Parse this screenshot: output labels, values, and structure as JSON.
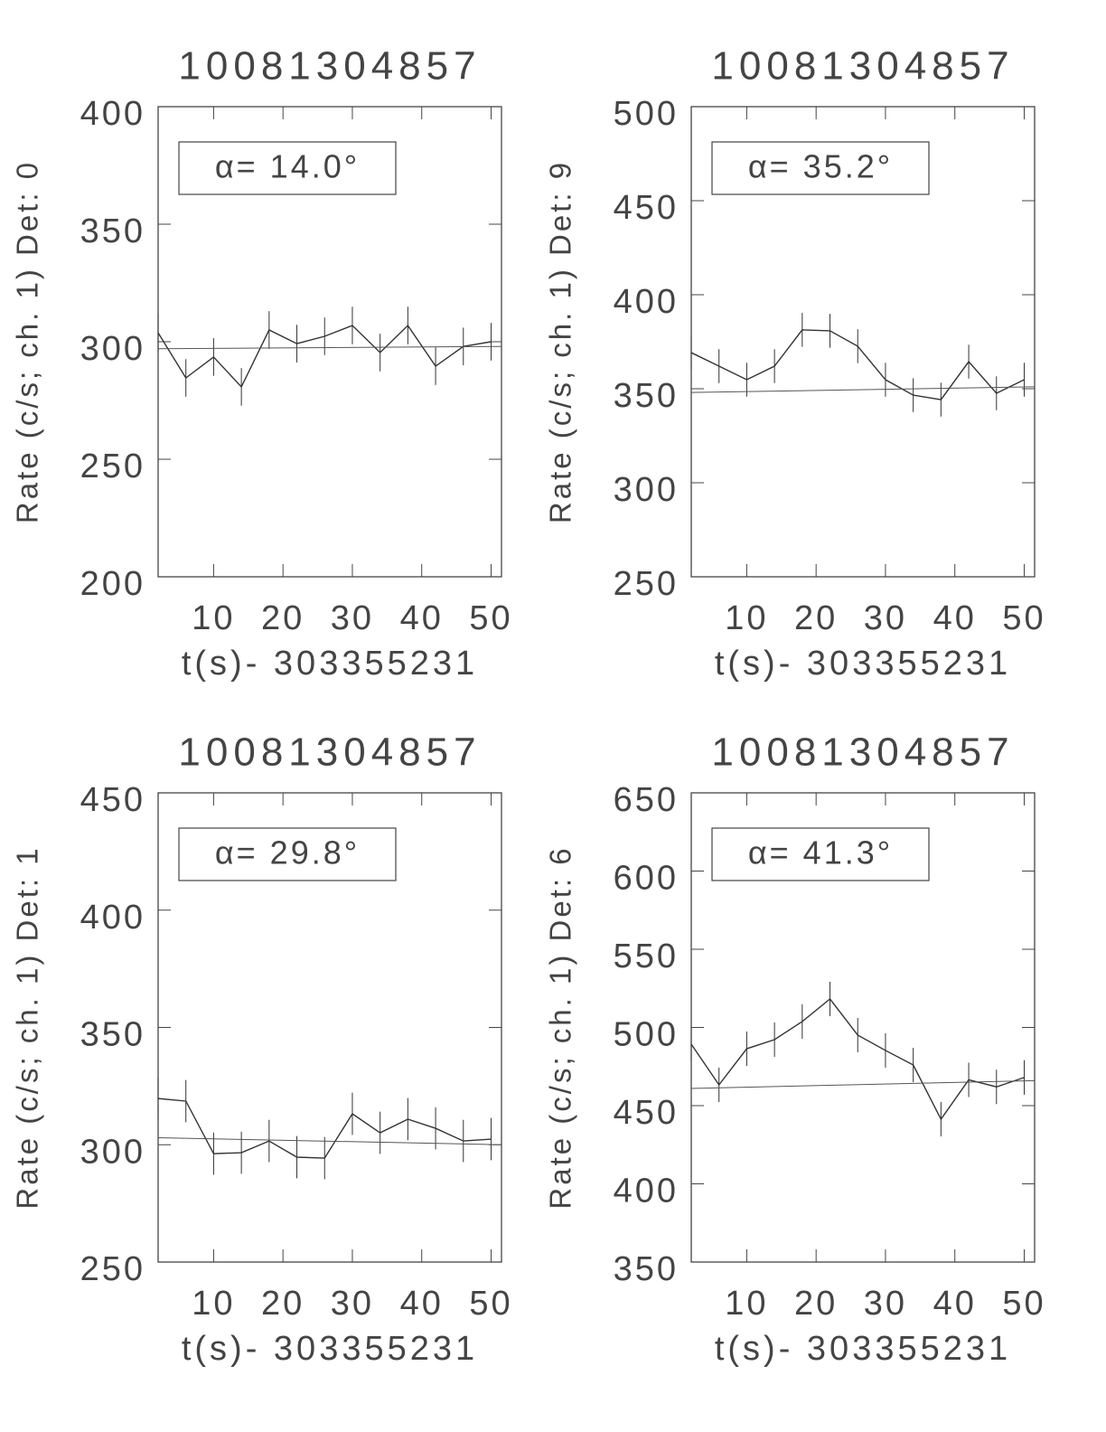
{
  "chart_data": [
    {
      "type": "line",
      "title": "10081304857",
      "xlabel": "t(s)- 303355231",
      "ylabel": "Rate (c/s; ch. 1) Det: 0",
      "annotation": "α= 14.0°",
      "x": [
        2,
        6,
        10,
        14,
        18,
        22,
        26,
        30,
        34,
        38,
        42,
        46,
        50
      ],
      "xlim": [
        2,
        51.5
      ],
      "xticks": [
        10,
        20,
        30,
        40,
        50
      ],
      "ylim": [
        200,
        400
      ],
      "yticks": [
        200,
        250,
        300,
        350,
        400
      ],
      "series": [
        {
          "color": "#333333",
          "values": [
            303.8,
            284.6,
            293.5,
            280.8,
            305,
            299.2,
            302.3,
            306.9,
            295.4,
            306.9,
            289.6,
            298,
            300
          ],
          "errors": [
            8,
            8,
            8,
            8,
            8,
            8,
            8,
            8,
            8,
            8,
            8,
            8,
            8
          ]
        },
        {
          "color": "#555555",
          "x": [
            2,
            51.5
          ],
          "values": [
            297,
            298
          ]
        }
      ]
    },
    {
      "type": "line",
      "title": "10081304857",
      "xlabel": "t(s)- 303355231",
      "ylabel": "Rate (c/s; ch. 1) Det: 9",
      "annotation": "α= 35.2°",
      "x": [
        2,
        6,
        10,
        14,
        18,
        22,
        26,
        30,
        34,
        38,
        42,
        46,
        50
      ],
      "xlim": [
        2,
        51.5
      ],
      "xticks": [
        10,
        20,
        30,
        40,
        50
      ],
      "ylim": [
        250,
        500
      ],
      "yticks": [
        250,
        300,
        350,
        400,
        450,
        500
      ],
      "series": [
        {
          "color": "#333333",
          "values": [
            369.2,
            362,
            354.8,
            362,
            381.3,
            380.8,
            372.6,
            354.8,
            346.6,
            344.2,
            364.4,
            347.6,
            354.8
          ],
          "errors": [
            9,
            9,
            9,
            9,
            9,
            9,
            9,
            9,
            9,
            9,
            9,
            9,
            9
          ]
        },
        {
          "color": "#555555",
          "x": [
            2,
            51.5
          ],
          "values": [
            348,
            351
          ]
        }
      ]
    },
    {
      "type": "line",
      "title": "10081304857",
      "xlabel": "t(s)- 303355231",
      "ylabel": "Rate (c/s; ch. 1) Det: 1",
      "annotation": "α= 29.8°",
      "x": [
        2,
        6,
        10,
        14,
        18,
        22,
        26,
        30,
        34,
        38,
        42,
        46,
        50
      ],
      "xlim": [
        2,
        51.5
      ],
      "xticks": [
        10,
        20,
        30,
        40,
        50
      ],
      "ylim": [
        250,
        450
      ],
      "yticks": [
        250,
        300,
        350,
        400,
        450
      ],
      "series": [
        {
          "color": "#333333",
          "values": [
            319.7,
            318.6,
            296.2,
            296.6,
            301.6,
            294.7,
            294.3,
            313.2,
            305.1,
            310.9,
            307,
            301.6,
            302.4
          ],
          "errors": [
            9,
            9,
            9,
            9,
            9,
            9,
            9,
            9,
            9,
            9,
            9,
            9,
            9
          ]
        },
        {
          "color": "#555555",
          "x": [
            2,
            51.5
          ],
          "values": [
            303,
            300
          ]
        }
      ]
    },
    {
      "type": "line",
      "title": "10081304857",
      "xlabel": "t(s)- 303355231",
      "ylabel": "Rate (c/s; ch. 1) Det: 6",
      "annotation": "α= 41.3°",
      "x": [
        2,
        6,
        10,
        14,
        18,
        22,
        26,
        30,
        34,
        38,
        42,
        46,
        50
      ],
      "xlim": [
        2,
        51.5
      ],
      "xticks": [
        10,
        20,
        30,
        40,
        50
      ],
      "ylim": [
        350,
        650
      ],
      "yticks": [
        350,
        400,
        450,
        500,
        550,
        600,
        650
      ],
      "series": [
        {
          "color": "#333333",
          "values": [
            489.3,
            463.3,
            486.4,
            492.2,
            503.8,
            518.2,
            495.1,
            485.3,
            476,
            441.3,
            466.5,
            462,
            468
          ],
          "errors": [
            11,
            11,
            11,
            11,
            11,
            11,
            11,
            11,
            11,
            11,
            11,
            11,
            11
          ]
        },
        {
          "color": "#555555",
          "x": [
            2,
            51.5
          ],
          "values": [
            461,
            466
          ]
        }
      ]
    }
  ]
}
